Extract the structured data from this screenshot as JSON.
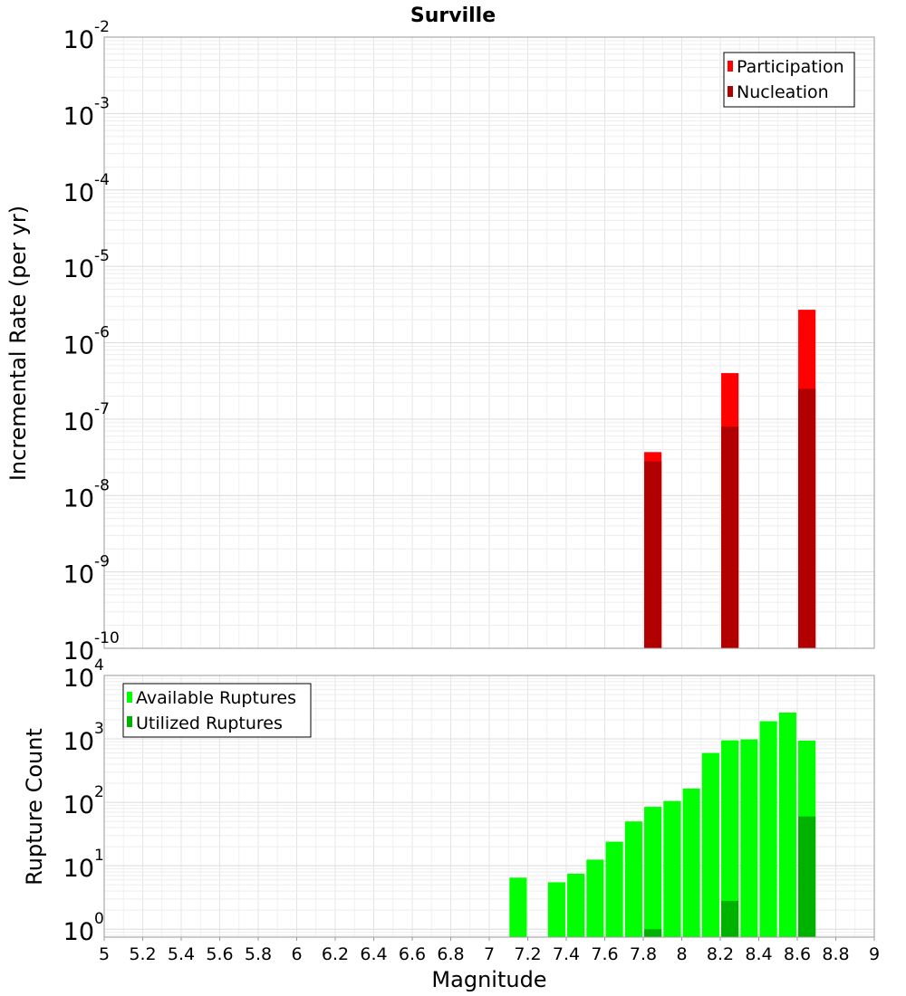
{
  "chart_data": [
    {
      "type": "bar",
      "title": "Surville",
      "xlabel": "",
      "ylabel": "Incremental Rate (per yr)",
      "yscale": "log",
      "xlim": [
        5,
        9
      ],
      "ylim": [
        1e-10,
        0.01
      ],
      "y_tick_exponents": [
        "-10",
        "-9",
        "-8",
        "-7",
        "-6",
        "-5",
        "-4",
        "-3",
        "-2"
      ],
      "legend_position": "top-right",
      "grid": true,
      "series": [
        {
          "name": "Participation",
          "color": "#ff0000",
          "points": [
            {
              "x": 7.85,
              "y": 3.7e-08
            },
            {
              "x": 8.25,
              "y": 4e-07
            },
            {
              "x": 8.65,
              "y": 2.7e-06
            }
          ]
        },
        {
          "name": "Nucleation",
          "color": "#b20000",
          "points": [
            {
              "x": 7.85,
              "y": 2.8e-08
            },
            {
              "x": 8.25,
              "y": 8e-08
            },
            {
              "x": 8.65,
              "y": 2.5e-07
            }
          ]
        }
      ]
    },
    {
      "type": "bar",
      "title": "",
      "xlabel": "Magnitude",
      "ylabel": "Rupture Count",
      "yscale": "log",
      "xlim": [
        5,
        9
      ],
      "ylim": [
        0.75,
        10000
      ],
      "y_tick_exponents": [
        "0",
        "1",
        "2",
        "3",
        "4"
      ],
      "x_ticks": [
        "5",
        "5.2",
        "5.4",
        "5.6",
        "5.8",
        "6",
        "6.2",
        "6.4",
        "6.6",
        "6.8",
        "7",
        "7.2",
        "7.4",
        "7.6",
        "7.8",
        "8",
        "8.2",
        "8.4",
        "8.6",
        "8.8",
        "9"
      ],
      "legend_position": "top-left",
      "grid": true,
      "series": [
        {
          "name": "Available Ruptures",
          "color": "#00ff00",
          "points": [
            {
              "x": 7.15,
              "y": 6.5
            },
            {
              "x": 7.35,
              "y": 5.5
            },
            {
              "x": 7.45,
              "y": 7.5
            },
            {
              "x": 7.55,
              "y": 12.5
            },
            {
              "x": 7.65,
              "y": 24
            },
            {
              "x": 7.75,
              "y": 50
            },
            {
              "x": 7.85,
              "y": 85
            },
            {
              "x": 7.95,
              "y": 105
            },
            {
              "x": 8.05,
              "y": 165
            },
            {
              "x": 8.15,
              "y": 600
            },
            {
              "x": 8.25,
              "y": 950
            },
            {
              "x": 8.35,
              "y": 980
            },
            {
              "x": 8.45,
              "y": 1900
            },
            {
              "x": 8.55,
              "y": 2600
            },
            {
              "x": 8.65,
              "y": 940
            }
          ]
        },
        {
          "name": "Utilized Ruptures",
          "color": "#00b200",
          "points": [
            {
              "x": 7.85,
              "y": 1
            },
            {
              "x": 8.25,
              "y": 2.8
            },
            {
              "x": 8.65,
              "y": 60
            }
          ]
        }
      ]
    }
  ]
}
